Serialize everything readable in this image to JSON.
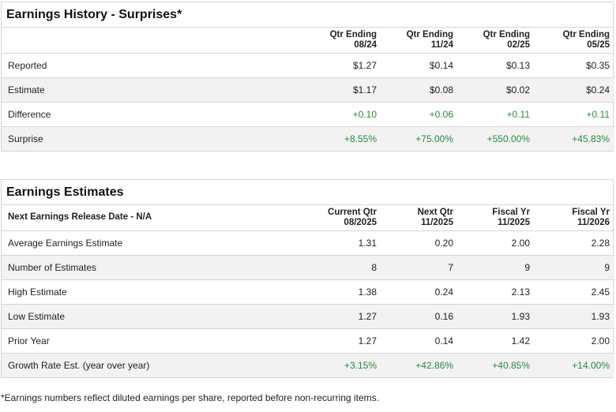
{
  "surprises": {
    "title": "Earnings History - Surprises*",
    "columns": [
      {
        "line1": "Qtr Ending",
        "line2": "08/24"
      },
      {
        "line1": "Qtr Ending",
        "line2": "11/24"
      },
      {
        "line1": "Qtr Ending",
        "line2": "02/25"
      },
      {
        "line1": "Qtr Ending",
        "line2": "05/25"
      }
    ],
    "rows": [
      {
        "label": "Reported",
        "values": [
          "$1.27",
          "$0.14",
          "$0.13",
          "$0.35"
        ]
      },
      {
        "label": "Estimate",
        "values": [
          "$1.17",
          "$0.08",
          "$0.02",
          "$0.24"
        ]
      },
      {
        "label": "Difference",
        "values": [
          "+0.10",
          "+0.06",
          "+0.11",
          "+0.11"
        ]
      },
      {
        "label": "Surprise",
        "values": [
          "+8.55%",
          "+75.00%",
          "+550.00%",
          "+45.83%"
        ]
      }
    ]
  },
  "estimates": {
    "title": "Earnings Estimates",
    "header_label": "Next Earnings Release Date - N/A",
    "columns": [
      {
        "line1": "Current Qtr",
        "line2": "08/2025"
      },
      {
        "line1": "Next Qtr",
        "line2": "11/2025"
      },
      {
        "line1": "Fiscal Yr",
        "line2": "11/2025"
      },
      {
        "line1": "Fiscal Yr",
        "line2": "11/2026"
      }
    ],
    "rows": [
      {
        "label": "Average Earnings Estimate",
        "values": [
          "1.31",
          "0.20",
          "2.00",
          "2.28"
        ]
      },
      {
        "label": "Number of Estimates",
        "values": [
          "8",
          "7",
          "9",
          "9"
        ]
      },
      {
        "label": "High Estimate",
        "values": [
          "1.38",
          "0.24",
          "2.13",
          "2.45"
        ]
      },
      {
        "label": "Low Estimate",
        "values": [
          "1.27",
          "0.16",
          "1.93",
          "1.93"
        ]
      },
      {
        "label": "Prior Year",
        "values": [
          "1.27",
          "0.14",
          "1.42",
          "2.00"
        ]
      },
      {
        "label": "Growth Rate Est. (year over year)",
        "values": [
          "+3.15%",
          "+42.86%",
          "+40.85%",
          "+14.00%"
        ]
      }
    ]
  },
  "footnote": "*Earnings numbers reflect diluted earnings per share, reported before non-recurring items.",
  "colors": {
    "positive": "#2a8a3e",
    "row_alt": "#f2f2f2",
    "border": "#d6d6d6"
  }
}
